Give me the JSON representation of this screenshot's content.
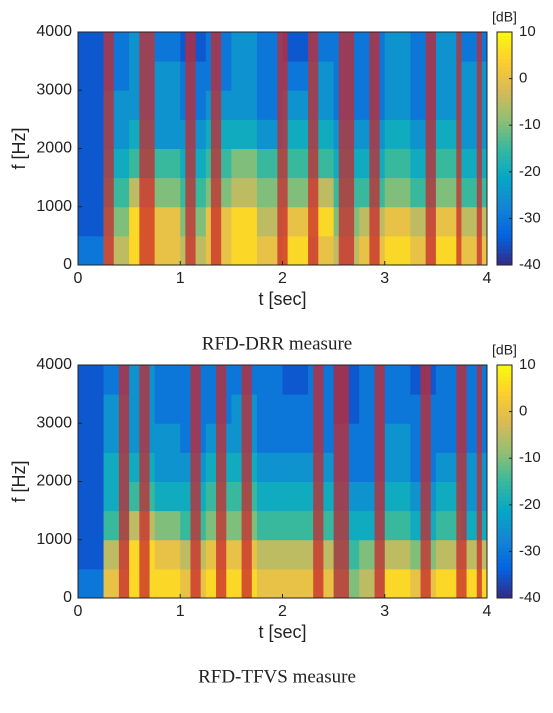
{
  "chart_data": [
    {
      "type": "heatmap",
      "caption": "RFD-DRR measure",
      "xlabel": "t [sec]",
      "ylabel": "f [Hz]",
      "xlim": [
        0,
        4
      ],
      "ylim": [
        0,
        4000
      ],
      "xticks": [
        0,
        1,
        2,
        3,
        4
      ],
      "yticks": [
        0,
        1000,
        2000,
        3000,
        4000
      ],
      "colormap": "parula",
      "clim": [
        -40,
        10
      ],
      "cticks": [
        10,
        0,
        -10,
        -20,
        -30,
        -40
      ],
      "colorbar_label": "[dB]",
      "values": [
        [
          -30,
          -5,
          5,
          0,
          -5,
          0,
          5,
          0,
          5,
          0,
          -5,
          0,
          5,
          0,
          5,
          0
        ],
        [
          -35,
          -10,
          5,
          0,
          -10,
          0,
          5,
          -5,
          0,
          5,
          -10,
          -5,
          0,
          -5,
          0,
          -5
        ],
        [
          -35,
          -15,
          -5,
          -10,
          -15,
          -10,
          -5,
          -10,
          -10,
          -5,
          -15,
          -15,
          -10,
          -15,
          -10,
          -15
        ],
        [
          -35,
          -20,
          -15,
          -15,
          -20,
          -15,
          -10,
          -15,
          -15,
          -15,
          -20,
          -20,
          -15,
          -20,
          -15,
          -20
        ],
        [
          -35,
          -25,
          -20,
          -25,
          -25,
          -20,
          -20,
          -25,
          -20,
          -20,
          -25,
          -25,
          -20,
          -25,
          -20,
          -25
        ],
        [
          -35,
          -25,
          -25,
          -25,
          -30,
          -25,
          -25,
          -30,
          -25,
          -25,
          -30,
          -30,
          -25,
          -30,
          -25,
          -25
        ],
        [
          -35,
          -30,
          -25,
          -25,
          -30,
          -30,
          -25,
          -30,
          -30,
          -25,
          -30,
          -30,
          -25,
          -30,
          -25,
          -25
        ],
        [
          -35,
          -30,
          -25,
          -30,
          -35,
          -30,
          -25,
          -30,
          -35,
          -30,
          -30,
          -30,
          -25,
          -30,
          -25,
          -30
        ]
      ],
      "mask_color": "#c8282e",
      "mask_intervals": [
        [
          0.25,
          0.35
        ],
        [
          0.6,
          0.75
        ],
        [
          1.05,
          1.15
        ],
        [
          1.3,
          1.4
        ],
        [
          1.95,
          2.05
        ],
        [
          2.25,
          2.35
        ],
        [
          2.55,
          2.7
        ],
        [
          2.85,
          2.95
        ],
        [
          3.4,
          3.5
        ],
        [
          3.7,
          3.75
        ],
        [
          3.9,
          3.95
        ]
      ]
    },
    {
      "type": "heatmap",
      "caption": "RFD-TFVS measure",
      "xlabel": "t [sec]",
      "ylabel": "f [Hz]",
      "xlim": [
        0,
        4
      ],
      "ylim": [
        0,
        4000
      ],
      "xticks": [
        0,
        1,
        2,
        3,
        4
      ],
      "yticks": [
        0,
        1000,
        2000,
        3000,
        4000
      ],
      "colormap": "parula",
      "clim": [
        -40,
        10
      ],
      "cticks": [
        10,
        0,
        -10,
        -20,
        -30,
        -40
      ],
      "colorbar_label": "[dB]",
      "values": [
        [
          -30,
          0,
          5,
          5,
          0,
          5,
          5,
          0,
          0,
          0,
          -10,
          -5,
          5,
          0,
          5,
          5
        ],
        [
          -35,
          -5,
          5,
          0,
          -5,
          0,
          0,
          -5,
          -5,
          -5,
          -15,
          -10,
          -5,
          -10,
          -5,
          -5
        ],
        [
          -35,
          -15,
          -5,
          -10,
          -15,
          -10,
          -10,
          -15,
          -15,
          -15,
          -20,
          -20,
          -15,
          -20,
          -15,
          -20
        ],
        [
          -35,
          -20,
          -15,
          -20,
          -20,
          -15,
          -15,
          -20,
          -20,
          -20,
          -25,
          -25,
          -20,
          -25,
          -20,
          -25
        ],
        [
          -35,
          -20,
          -20,
          -25,
          -25,
          -20,
          -20,
          -25,
          -25,
          -25,
          -30,
          -30,
          -25,
          -30,
          -25,
          -25
        ],
        [
          -35,
          -25,
          -25,
          -25,
          -30,
          -25,
          -25,
          -30,
          -30,
          -30,
          -30,
          -30,
          -25,
          -30,
          -30,
          -30
        ],
        [
          -35,
          -25,
          -25,
          -30,
          -30,
          -30,
          -25,
          -30,
          -30,
          -30,
          -35,
          -30,
          -30,
          -30,
          -30,
          -30
        ],
        [
          -35,
          -30,
          -25,
          -30,
          -30,
          -30,
          -30,
          -30,
          -35,
          -30,
          -35,
          -30,
          -30,
          -35,
          -30,
          -30
        ]
      ],
      "mask_color": "#c8282e",
      "mask_intervals": [
        [
          0.4,
          0.5
        ],
        [
          0.6,
          0.7
        ],
        [
          1.1,
          1.2
        ],
        [
          1.35,
          1.45
        ],
        [
          1.6,
          1.7
        ],
        [
          2.3,
          2.4
        ],
        [
          2.5,
          2.65
        ],
        [
          2.9,
          3.0
        ],
        [
          3.35,
          3.45
        ],
        [
          3.7,
          3.8
        ],
        [
          3.9,
          3.95
        ]
      ]
    }
  ]
}
